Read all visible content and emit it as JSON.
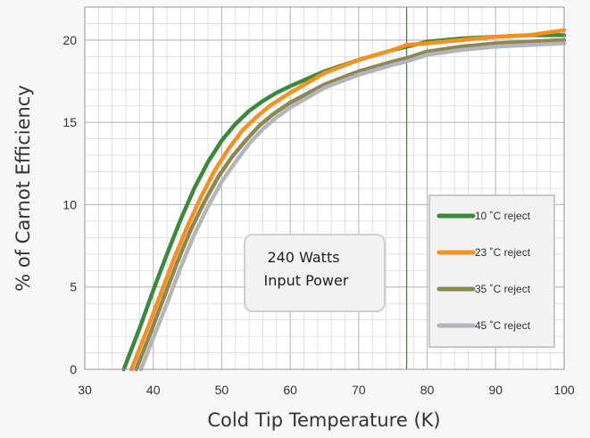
{
  "chart_data": {
    "type": "line",
    "xlabel": "Cold Tip Temperature (K)",
    "ylabel": "% of Carnot Efficiency",
    "xlim": [
      30,
      100
    ],
    "ylim": [
      0,
      22
    ],
    "x_ticks": [
      30,
      40,
      50,
      60,
      70,
      80,
      90,
      100
    ],
    "y_ticks": [
      0,
      5,
      10,
      15,
      20
    ],
    "x_tick_labels": [
      "30",
      "40",
      "50",
      "60",
      "70",
      "80",
      "90",
      "100"
    ],
    "y_tick_labels": [
      "0",
      "5",
      "10",
      "15",
      "20"
    ],
    "x_minor_step": 2,
    "y_minor_step": 1,
    "grid": true,
    "reference_line_x": 77,
    "legend_position": "right",
    "annotation": [
      "240 Watts",
      "Input Power"
    ],
    "series": [
      {
        "name": "10 ˚C reject",
        "color": "#3a8a3c",
        "points": [
          [
            35.7,
            0
          ],
          [
            38,
            2.5
          ],
          [
            40,
            4.8
          ],
          [
            42,
            7
          ],
          [
            44,
            9.1
          ],
          [
            46,
            11
          ],
          [
            48,
            12.6
          ],
          [
            50,
            13.9
          ],
          [
            52,
            14.9
          ],
          [
            54,
            15.7
          ],
          [
            56,
            16.3
          ],
          [
            58,
            16.8
          ],
          [
            60,
            17.2
          ],
          [
            65,
            18.1
          ],
          [
            70,
            18.8
          ],
          [
            75,
            19.4
          ],
          [
            77,
            19.6
          ],
          [
            80,
            19.9
          ],
          [
            85,
            20.1
          ],
          [
            90,
            20.2
          ],
          [
            95,
            20.3
          ],
          [
            100,
            20.3
          ]
        ]
      },
      {
        "name": "23 ˚C reject",
        "color": "#f7901e",
        "points": [
          [
            36.8,
            0
          ],
          [
            39,
            2.3
          ],
          [
            41,
            4.5
          ],
          [
            43,
            6.7
          ],
          [
            45,
            8.7
          ],
          [
            47,
            10.5
          ],
          [
            49,
            12.1
          ],
          [
            51,
            13.4
          ],
          [
            53,
            14.5
          ],
          [
            55,
            15.3
          ],
          [
            57,
            16
          ],
          [
            60,
            16.8
          ],
          [
            65,
            18
          ],
          [
            70,
            18.8
          ],
          [
            75,
            19.4
          ],
          [
            77,
            19.7
          ],
          [
            80,
            19.8
          ],
          [
            85,
            20
          ],
          [
            90,
            20.2
          ],
          [
            95,
            20.3
          ],
          [
            100,
            20.6
          ]
        ]
      },
      {
        "name": "35 ˚C reject",
        "color": "#8e8751",
        "points": [
          [
            37.5,
            0
          ],
          [
            39.5,
            2.1
          ],
          [
            41.5,
            4.3
          ],
          [
            43.5,
            6.5
          ],
          [
            45.5,
            8.5
          ],
          [
            47.5,
            10.2
          ],
          [
            49.5,
            11.7
          ],
          [
            51.5,
            12.9
          ],
          [
            53.5,
            13.9
          ],
          [
            55.5,
            14.8
          ],
          [
            57.5,
            15.5
          ],
          [
            60,
            16.2
          ],
          [
            65,
            17.3
          ],
          [
            70,
            18.1
          ],
          [
            75,
            18.7
          ],
          [
            77,
            18.9
          ],
          [
            80,
            19.3
          ],
          [
            85,
            19.6
          ],
          [
            90,
            19.8
          ],
          [
            95,
            19.9
          ],
          [
            100,
            20
          ]
        ]
      },
      {
        "name": "45 ˚C reject",
        "color": "#b3b5bd",
        "points": [
          [
            38.2,
            0
          ],
          [
            40,
            1.9
          ],
          [
            42,
            4
          ],
          [
            44,
            6.2
          ],
          [
            46,
            8.2
          ],
          [
            48,
            9.9
          ],
          [
            50,
            11.4
          ],
          [
            52,
            12.6
          ],
          [
            54,
            13.7
          ],
          [
            56,
            14.6
          ],
          [
            58,
            15.3
          ],
          [
            60,
            15.9
          ],
          [
            65,
            17.1
          ],
          [
            70,
            17.9
          ],
          [
            75,
            18.5
          ],
          [
            77,
            18.7
          ],
          [
            80,
            19.1
          ],
          [
            85,
            19.4
          ],
          [
            90,
            19.6
          ],
          [
            95,
            19.7
          ],
          [
            100,
            19.8
          ]
        ]
      }
    ]
  }
}
